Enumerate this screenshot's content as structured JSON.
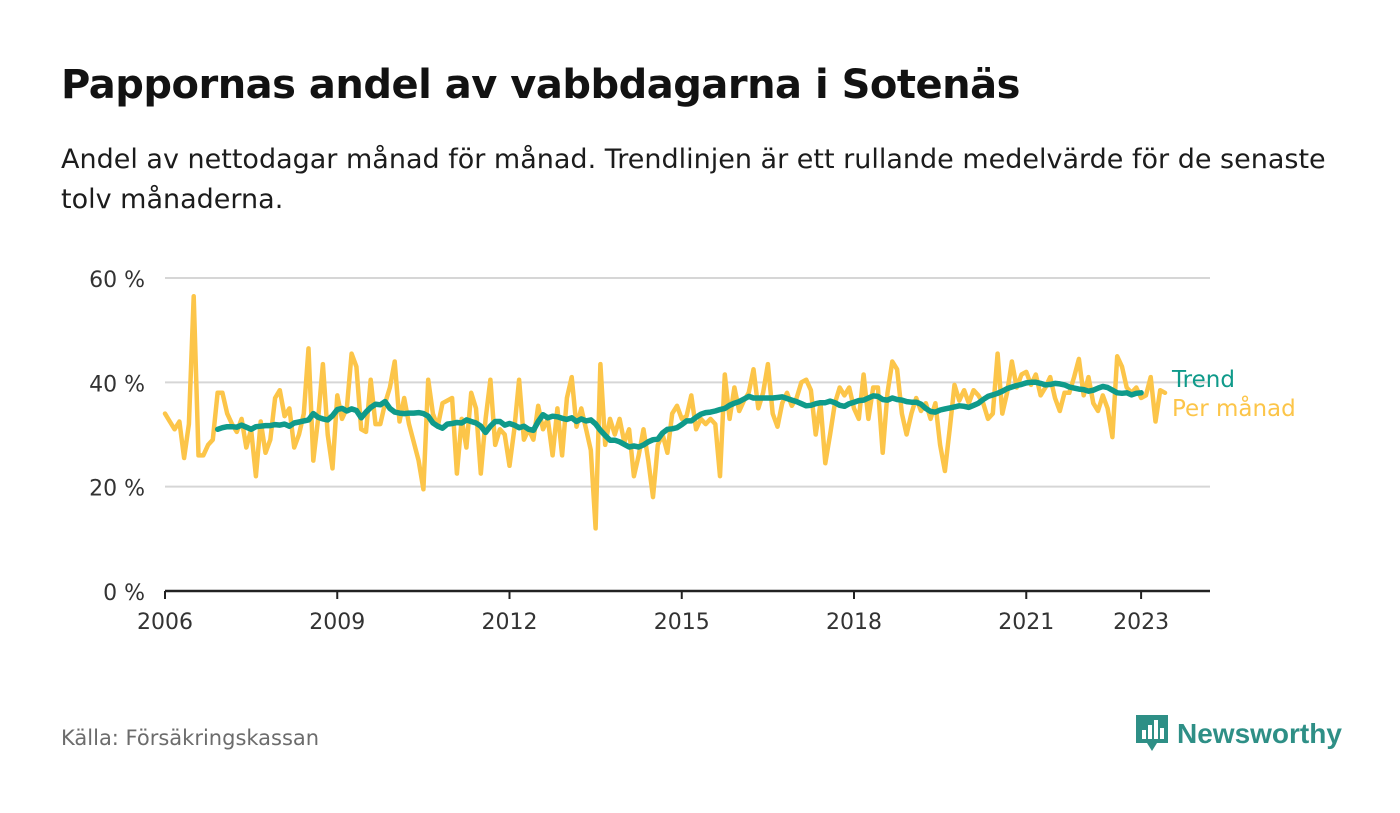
{
  "title": "Pappornas andel av vabbdagarna i Sotenäs",
  "subtitle": "Andel av nettodagar månad för månad. Trendlinjen är ett rullande medelvärde för de senaste tolv månaderna.",
  "source": "Källa: Försäkringskassan",
  "brand": {
    "name": "Newsworthy",
    "icon": "newsworthy-logo-icon"
  },
  "colors": {
    "per_month": "#fcc549",
    "trend": "#0f9a8a",
    "grid": "#d6d6d6",
    "axis": "#222222",
    "tick_text": "#333333",
    "source": "#6c6c6c",
    "brand": "#2e8f86"
  },
  "chart_data": {
    "type": "line",
    "x_unit": "year",
    "xlim": [
      2006,
      2024.2
    ],
    "ylim": [
      0,
      60
    ],
    "y_ticks": [
      0,
      20,
      40,
      60
    ],
    "y_tick_labels": [
      "0 %",
      "20 %",
      "40 %",
      "60 %"
    ],
    "x_ticks": [
      2006,
      2009,
      2012,
      2015,
      2018,
      2021,
      2023
    ],
    "x_tick_labels": [
      "2006",
      "2009",
      "2012",
      "2015",
      "2018",
      "2021",
      "2023"
    ],
    "grid": true,
    "legend": "right-end-labels",
    "series": [
      {
        "name": "Per månad",
        "start": 2006.0,
        "step_months": 1,
        "values": [
          34,
          32.5,
          31,
          32.5,
          25.5,
          32,
          56.5,
          26,
          26,
          28,
          29,
          38,
          38,
          34,
          32,
          30.5,
          33,
          27.5,
          31,
          22,
          32.5,
          26.5,
          29,
          37,
          38.5,
          33.5,
          35,
          27.5,
          30,
          34,
          46.5,
          25,
          33,
          43.5,
          30,
          23.5,
          37.5,
          33,
          35,
          45.5,
          43,
          31,
          30.5,
          40.5,
          32,
          32,
          36,
          39,
          44,
          32.5,
          37,
          32,
          28.5,
          25,
          19.5,
          40.5,
          34,
          31.5,
          36,
          36.5,
          37,
          22.5,
          33,
          27.5,
          38,
          35,
          22.5,
          33,
          40.5,
          28,
          31,
          30,
          24,
          31,
          40.5,
          29,
          31,
          29,
          35.5,
          31,
          33,
          26,
          35,
          26,
          37,
          41,
          31.5,
          35,
          31,
          27,
          12,
          43.5,
          28,
          33,
          30,
          33,
          28.5,
          31,
          22,
          26,
          31,
          25,
          18,
          28,
          30,
          26.5,
          34,
          35.5,
          33,
          33.5,
          37.5,
          31,
          33,
          32,
          33,
          32,
          22,
          41.5,
          33,
          39,
          34.5,
          36.5,
          38,
          42.5,
          35,
          38,
          43.5,
          34,
          31.5,
          36,
          38,
          35.5,
          37,
          40,
          40.5,
          38.5,
          30,
          36,
          24.5,
          30,
          36,
          39,
          37.5,
          39,
          35,
          33,
          41.5,
          33,
          39,
          39,
          26.5,
          38,
          44,
          42.5,
          34,
          30,
          34,
          37,
          34.5,
          36,
          33,
          36,
          28,
          23,
          31,
          39.5,
          36.5,
          38.5,
          36,
          38.5,
          37.5,
          36,
          33,
          34,
          45.5,
          34,
          38,
          44,
          39,
          41.5,
          42,
          39.5,
          41.5,
          37.5,
          39,
          41,
          37,
          34.5,
          38,
          38,
          41,
          44.5,
          37.5,
          41,
          36,
          34.5,
          37.5,
          35,
          29.5,
          45,
          43,
          39,
          38,
          39,
          37,
          37.5,
          41,
          32.5,
          38.5,
          38
        ]
      },
      {
        "name": "Trend",
        "start": 2006.917,
        "step_months": 1,
        "values": [
          31,
          31.3,
          31.5,
          31.5,
          31.4,
          31.8,
          31.4,
          31,
          31.5,
          31.6,
          31.7,
          31.7,
          31.9,
          31.8,
          32,
          31.6,
          32.2,
          32.4,
          32.6,
          32.8,
          34,
          33.3,
          33,
          32.8,
          33.6,
          34.8,
          35,
          34.5,
          34.9,
          34.6,
          33.2,
          34.3,
          35.2,
          35.8,
          35.7,
          36.3,
          35,
          34.3,
          34.1,
          34,
          34.1,
          34.1,
          34.2,
          34,
          33.5,
          32.2,
          31.6,
          31.2,
          32,
          32.1,
          32.3,
          32.2,
          32.8,
          32.5,
          32.2,
          31.6,
          30.4,
          31.6,
          32.5,
          32.5,
          31.8,
          32.1,
          31.8,
          31.3,
          31.6,
          31,
          30.8,
          32.5,
          33.8,
          33.2,
          33.5,
          33.4,
          33.1,
          32.9,
          33.2,
          32.5,
          33,
          32.6,
          32.8,
          32,
          30.8,
          29.8,
          28.9,
          28.9,
          28.6,
          28.1,
          27.6,
          27.8,
          27.6,
          28,
          28.6,
          29,
          29.1,
          30.3,
          31,
          31.1,
          31.3,
          31.9,
          32.6,
          32.6,
          33.3,
          33.9,
          34.2,
          34.3,
          34.5,
          34.8,
          35,
          35.6,
          36,
          36.3,
          36.8,
          37.3,
          37,
          37,
          37,
          37,
          37,
          37.1,
          37.2,
          36.9,
          36.6,
          36.3,
          35.9,
          35.5,
          35.6,
          35.9,
          36.1,
          36.1,
          36.4,
          36.1,
          35.6,
          35.4,
          35.9,
          36.2,
          36.5,
          36.6,
          37,
          37.4,
          37.3,
          36.7,
          36.6,
          37,
          36.7,
          36.6,
          36.3,
          36.2,
          36.2,
          35.8,
          35,
          34.4,
          34.3,
          34.7,
          34.9,
          35.1,
          35.3,
          35.5,
          35.4,
          35.2,
          35.6,
          36,
          36.7,
          37.3,
          37.6,
          37.9,
          38.3,
          38.8,
          39.1,
          39.4,
          39.6,
          39.9,
          40,
          40,
          39.8,
          39.5,
          39.6,
          39.8,
          39.7,
          39.5,
          39.1,
          38.9,
          38.7,
          38.6,
          38.3,
          38.5,
          38.9,
          39.2,
          39,
          38.5,
          38,
          37.9,
          38,
          37.6,
          37.9,
          38
        ]
      }
    ]
  }
}
